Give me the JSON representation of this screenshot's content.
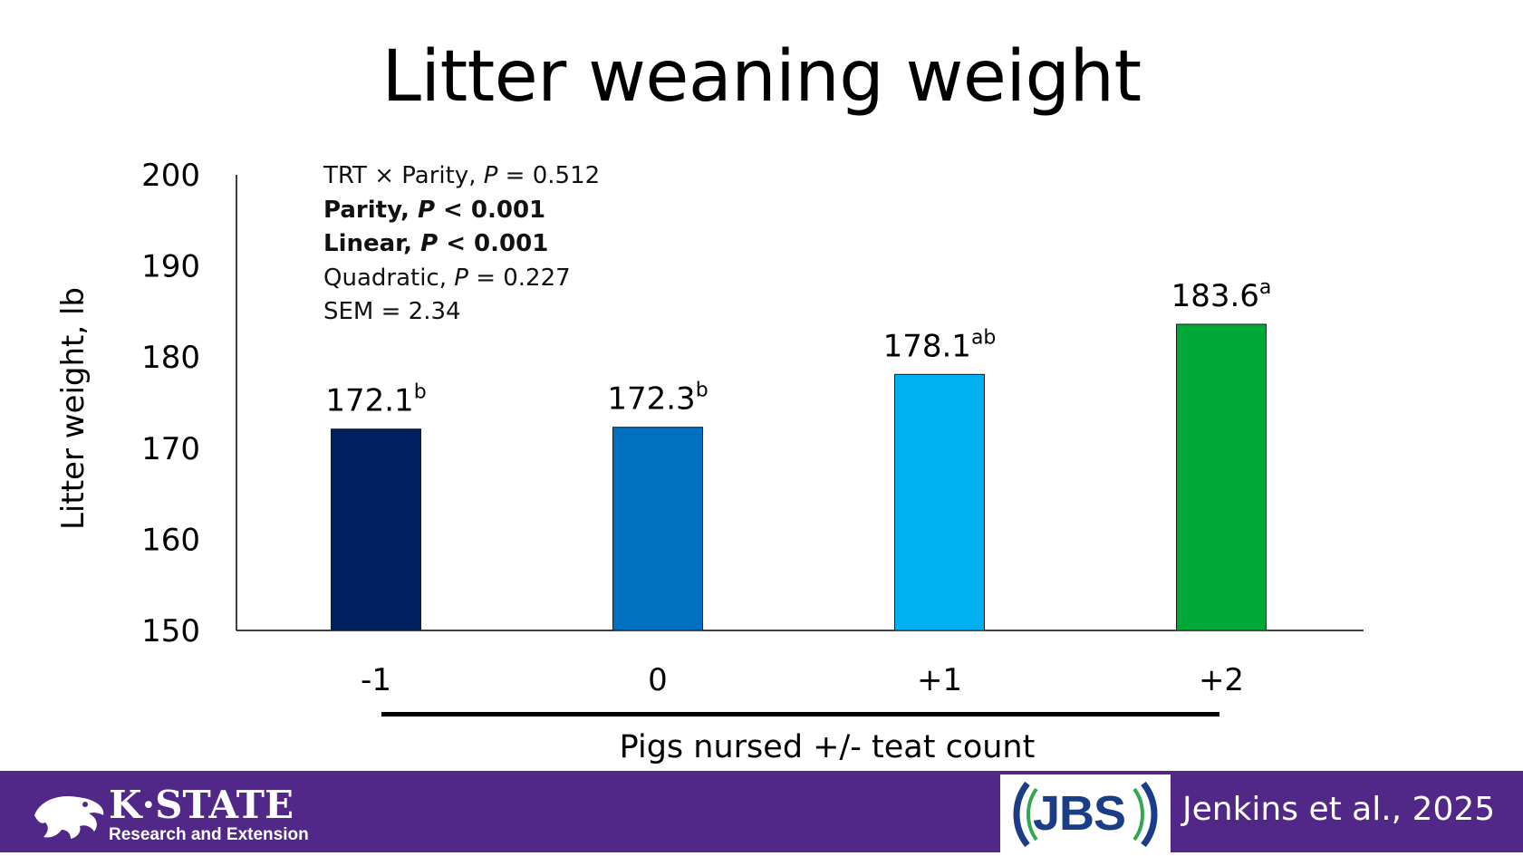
{
  "chart_data": {
    "type": "bar",
    "title": "Litter weaning weight",
    "xlabel": "Pigs nursed +/- teat count",
    "ylabel": "Litter weight, lb",
    "ylim": [
      150,
      200
    ],
    "yticks": [
      "150",
      "160",
      "170",
      "180",
      "190",
      "200"
    ],
    "categories": [
      "-1",
      "0",
      "+1",
      "+2"
    ],
    "values": [
      172.1,
      172.3,
      178.1,
      183.6
    ],
    "value_labels": [
      "172.1",
      "172.3",
      "178.1",
      "183.6"
    ],
    "superscripts": [
      "b",
      "b",
      "ab",
      "a"
    ],
    "colors": [
      "#002060",
      "#0070C0",
      "#00B0F0",
      "#00A838"
    ],
    "grid": false,
    "annotations": {
      "line1_prefix": "TRT × Parity, ",
      "line1_p": "P",
      "line1_suffix": " = 0.512",
      "line2_prefix": "Parity, ",
      "line2_p": "P",
      "line2_suffix": " < 0.001",
      "line3_prefix": "Linear, ",
      "line3_p": "P",
      "line3_suffix": " < 0.001",
      "line4_prefix": "Quadratic, ",
      "line4_p": "P",
      "line4_suffix": " = 0.227",
      "line5": "SEM = 2.34"
    }
  },
  "footer": {
    "brand_name": "K·STATE",
    "brand_sub": "Research and Extension",
    "partner": "JBS",
    "citation": "Jenkins et al., 2025",
    "footer_color": "#512888"
  }
}
